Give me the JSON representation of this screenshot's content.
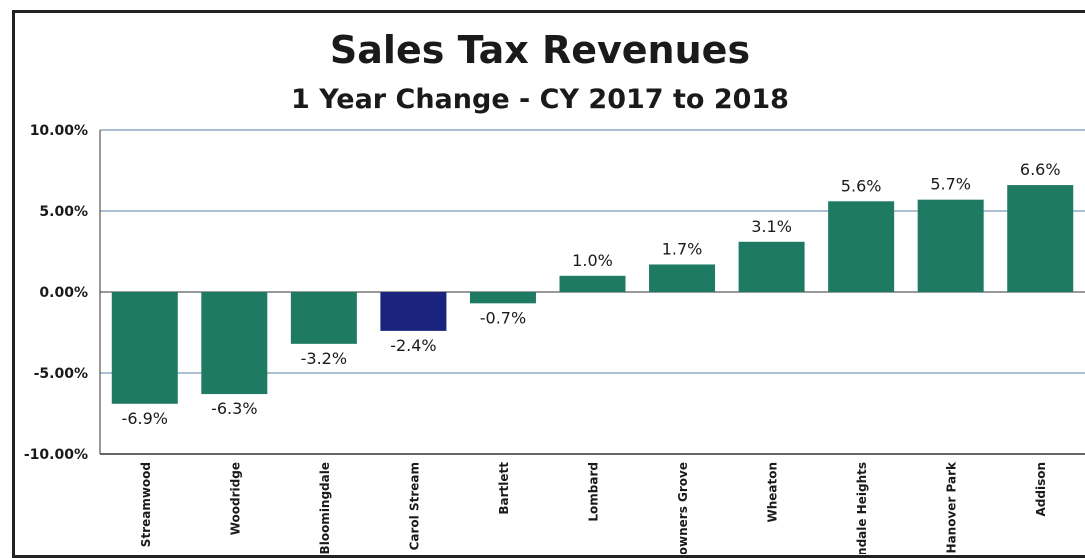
{
  "chart_data": {
    "type": "bar",
    "title": "Sales Tax Revenues",
    "subtitle": "1 Year Change - CY 2017 to 2018",
    "categories": [
      "Streamwood",
      "Woodridge",
      "Bloomingdale",
      "Carol Stream",
      "Bartlett",
      "Lombard",
      "Downers Grove",
      "Wheaton",
      "Glendale Heights",
      "Hanover Park",
      "Addison"
    ],
    "values": [
      -6.9,
      -6.3,
      -3.2,
      -2.4,
      -0.7,
      1.0,
      1.7,
      3.1,
      5.6,
      5.7,
      6.6
    ],
    "value_labels": [
      "-6.9%",
      "-6.3%",
      "-3.2%",
      "-2.4%",
      "-0.7%",
      "1.0%",
      "1.7%",
      "3.1%",
      "5.6%",
      "5.7%",
      "6.6%"
    ],
    "highlight_category": "Carol Stream",
    "y_tick_labels": [
      "10.00%",
      "5.00%",
      "0.00%",
      "-5.00%",
      "-10.00%"
    ],
    "y_ticks": [
      10,
      5,
      0,
      -5,
      -10
    ],
    "ylim": [
      -10,
      10
    ],
    "xlabel": "",
    "ylabel": "",
    "grid": true,
    "legend": "none",
    "colors": {
      "bar": "#1f7a63",
      "highlight": "#1a237e",
      "grid": "#5b7fa6",
      "axis": "#333333"
    }
  }
}
